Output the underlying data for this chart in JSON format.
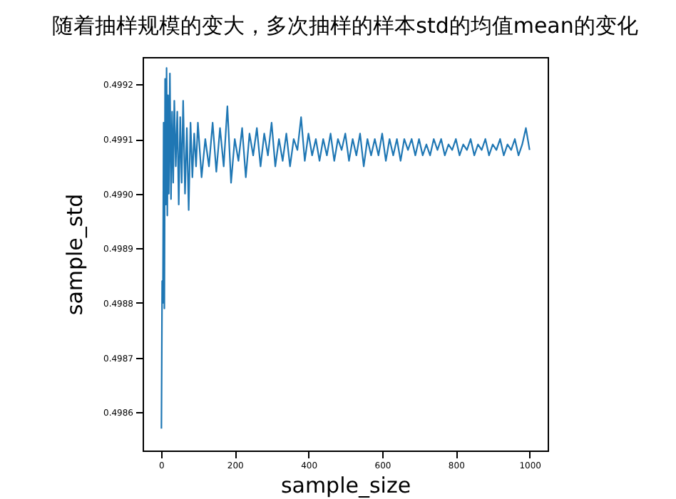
{
  "chart_data": {
    "type": "line",
    "title": "随着抽样规模的变大，多次抽样的样本std的均值mean的变化",
    "xlabel": "sample_size",
    "ylabel": "sample_std",
    "x": [
      1,
      3,
      5,
      7,
      9,
      11,
      13,
      15,
      17,
      19,
      21,
      24,
      27,
      30,
      33,
      36,
      40,
      44,
      48,
      52,
      56,
      60,
      65,
      70,
      75,
      80,
      85,
      90,
      95,
      100,
      110,
      120,
      130,
      140,
      150,
      160,
      170,
      180,
      190,
      200,
      210,
      220,
      230,
      240,
      250,
      260,
      270,
      280,
      290,
      300,
      310,
      320,
      330,
      340,
      350,
      360,
      370,
      380,
      390,
      400,
      410,
      420,
      430,
      440,
      450,
      460,
      470,
      480,
      490,
      500,
      510,
      520,
      530,
      540,
      550,
      560,
      570,
      580,
      590,
      600,
      610,
      620,
      630,
      640,
      650,
      660,
      670,
      680,
      690,
      700,
      710,
      720,
      730,
      740,
      750,
      760,
      770,
      780,
      790,
      800,
      810,
      820,
      830,
      840,
      850,
      860,
      870,
      880,
      890,
      900,
      910,
      920,
      930,
      940,
      950,
      960,
      970,
      980,
      990,
      1000
    ],
    "series": [
      {
        "color": "#1f77b4",
        "values": [
          0.49857,
          0.49884,
          0.4988,
          0.49913,
          0.49879,
          0.49921,
          0.49898,
          0.49923,
          0.49896,
          0.49918,
          0.499,
          0.49922,
          0.49899,
          0.49915,
          0.49902,
          0.49917,
          0.49905,
          0.49915,
          0.49898,
          0.49914,
          0.49902,
          0.49917,
          0.499,
          0.49912,
          0.49897,
          0.49913,
          0.49903,
          0.49911,
          0.49905,
          0.49913,
          0.49903,
          0.4991,
          0.49905,
          0.49913,
          0.49904,
          0.49912,
          0.49905,
          0.49916,
          0.49902,
          0.4991,
          0.49906,
          0.49912,
          0.49903,
          0.49911,
          0.49907,
          0.49912,
          0.49905,
          0.49911,
          0.49907,
          0.49913,
          0.49905,
          0.4991,
          0.49906,
          0.49911,
          0.49905,
          0.4991,
          0.49908,
          0.49914,
          0.49906,
          0.49911,
          0.49907,
          0.4991,
          0.49906,
          0.4991,
          0.49907,
          0.49911,
          0.49906,
          0.4991,
          0.49908,
          0.49911,
          0.49906,
          0.4991,
          0.49907,
          0.49911,
          0.49905,
          0.4991,
          0.49907,
          0.4991,
          0.49907,
          0.49911,
          0.49906,
          0.4991,
          0.49907,
          0.4991,
          0.49906,
          0.4991,
          0.49908,
          0.4991,
          0.49907,
          0.4991,
          0.49907,
          0.49909,
          0.49907,
          0.4991,
          0.49908,
          0.4991,
          0.49907,
          0.49909,
          0.49908,
          0.4991,
          0.49907,
          0.49909,
          0.49908,
          0.4991,
          0.49907,
          0.49909,
          0.49908,
          0.4991,
          0.49907,
          0.49909,
          0.49908,
          0.4991,
          0.49907,
          0.49909,
          0.49908,
          0.4991,
          0.49907,
          0.49909,
          0.49912,
          0.49908
        ]
      }
    ],
    "xlim": [
      -50,
      1049
    ],
    "ylim": [
      0.49853,
      0.49925
    ],
    "xticks": [
      0,
      200,
      400,
      600,
      800,
      1000
    ],
    "yticks": [
      0.4986,
      0.4987,
      0.4988,
      0.4989,
      {
        "value": 0.499,
        "label": "0.4990"
      },
      0.4991,
      0.4992
    ],
    "grid": false,
    "legend": false,
    "marker": "none",
    "line_style": "solid"
  }
}
